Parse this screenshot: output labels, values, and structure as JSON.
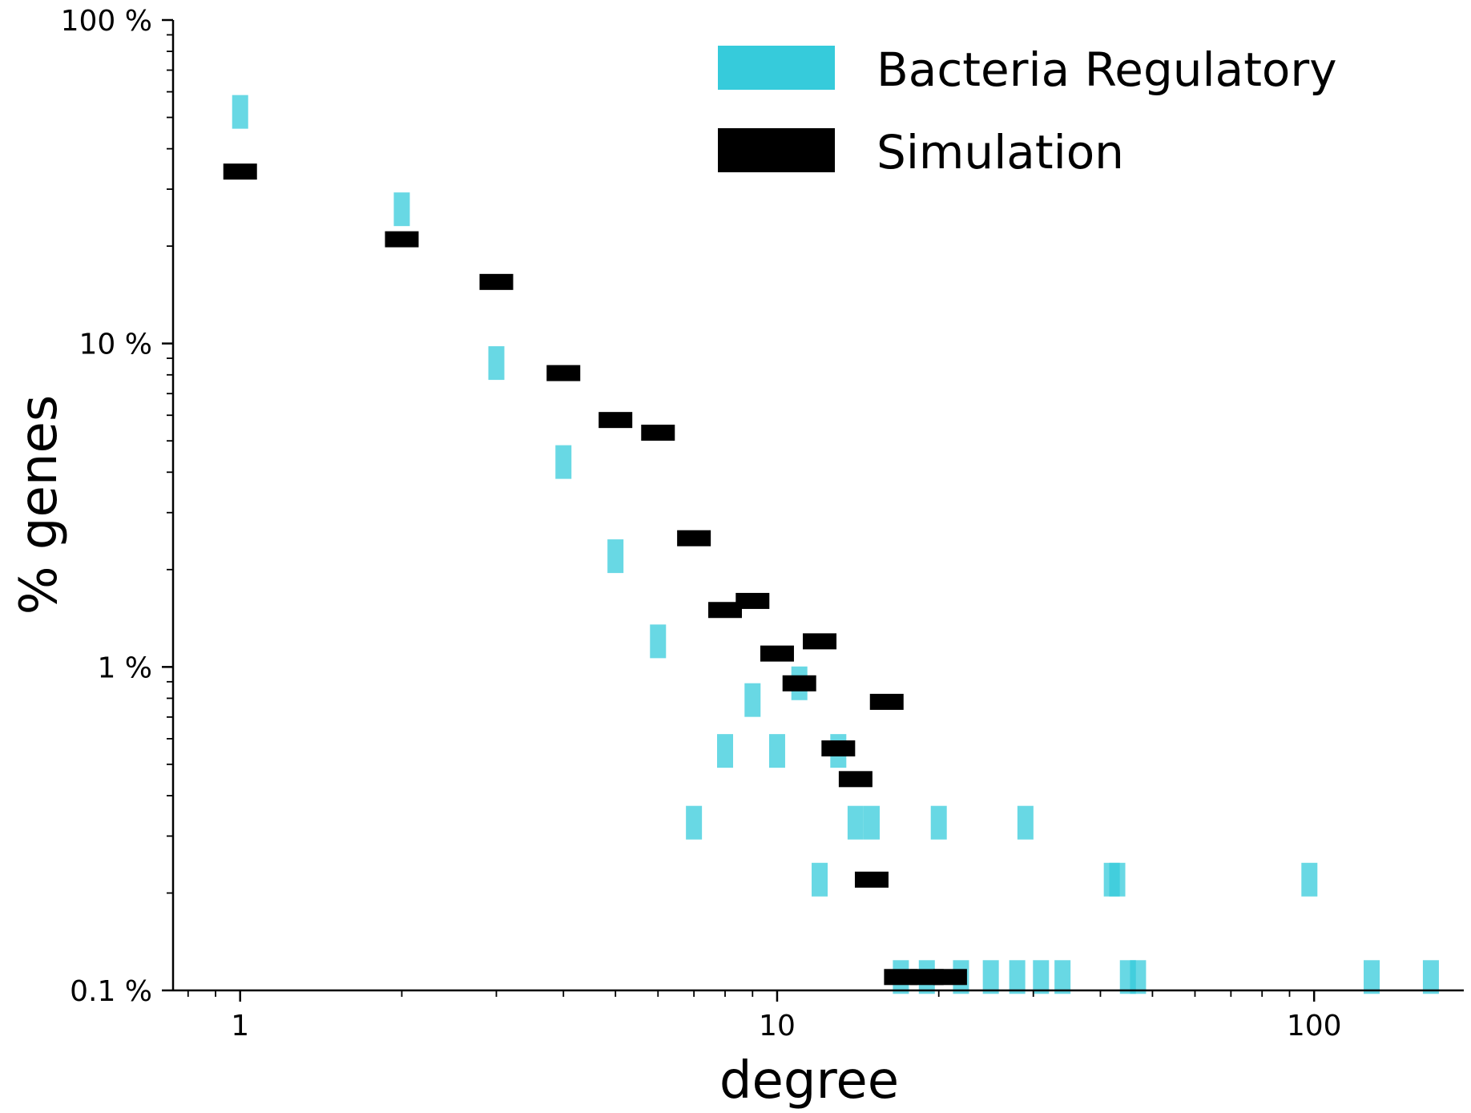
{
  "chart_data": {
    "type": "scatter",
    "title": "",
    "xlabel": "degree",
    "ylabel": "% genes",
    "xscale": "log",
    "yscale": "log",
    "xlim": [
      0.75,
      190
    ],
    "ylim": [
      0.1,
      100
    ],
    "x_ticks": [
      {
        "value": 1,
        "label": "1"
      },
      {
        "value": 10,
        "label": "10"
      },
      {
        "value": 100,
        "label": "100"
      }
    ],
    "y_ticks": [
      {
        "value": 0.1,
        "label": "0.1 %"
      },
      {
        "value": 1,
        "label": "1 %"
      },
      {
        "value": 10,
        "label": "10 %"
      },
      {
        "value": 100,
        "label": "100 %"
      }
    ],
    "grid": false,
    "legend_position": "top-right",
    "series": [
      {
        "name": "Bacteria Regulatory",
        "color": "#36cbdb",
        "marker": "vertical-bar",
        "points": [
          {
            "x": 1,
            "y": 52
          },
          {
            "x": 2,
            "y": 26
          },
          {
            "x": 3,
            "y": 8.7
          },
          {
            "x": 4,
            "y": 4.3
          },
          {
            "x": 5,
            "y": 2.2
          },
          {
            "x": 6,
            "y": 1.2
          },
          {
            "x": 7,
            "y": 0.33
          },
          {
            "x": 8,
            "y": 0.55
          },
          {
            "x": 9,
            "y": 0.79
          },
          {
            "x": 10,
            "y": 0.55
          },
          {
            "x": 11,
            "y": 0.89
          },
          {
            "x": 12,
            "y": 0.22
          },
          {
            "x": 13,
            "y": 0.55
          },
          {
            "x": 14,
            "y": 0.33
          },
          {
            "x": 15,
            "y": 0.33
          },
          {
            "x": 17,
            "y": 0.11
          },
          {
            "x": 19,
            "y": 0.11
          },
          {
            "x": 20,
            "y": 0.33
          },
          {
            "x": 22,
            "y": 0.11
          },
          {
            "x": 25,
            "y": 0.11
          },
          {
            "x": 28,
            "y": 0.11
          },
          {
            "x": 29,
            "y": 0.33
          },
          {
            "x": 31,
            "y": 0.11
          },
          {
            "x": 34,
            "y": 0.11
          },
          {
            "x": 42,
            "y": 0.22
          },
          {
            "x": 43,
            "y": 0.22
          },
          {
            "x": 45,
            "y": 0.11
          },
          {
            "x": 47,
            "y": 0.11
          },
          {
            "x": 98,
            "y": 0.22
          },
          {
            "x": 128,
            "y": 0.11
          },
          {
            "x": 165,
            "y": 0.11
          }
        ]
      },
      {
        "name": "Simulation",
        "color": "#000000",
        "marker": "horizontal-bar",
        "points": [
          {
            "x": 1,
            "y": 34
          },
          {
            "x": 2,
            "y": 21
          },
          {
            "x": 3,
            "y": 15.5
          },
          {
            "x": 4,
            "y": 8.1
          },
          {
            "x": 5,
            "y": 5.8
          },
          {
            "x": 6,
            "y": 5.3
          },
          {
            "x": 7,
            "y": 2.5
          },
          {
            "x": 8,
            "y": 1.5
          },
          {
            "x": 9,
            "y": 1.6
          },
          {
            "x": 10,
            "y": 1.1
          },
          {
            "x": 11,
            "y": 0.89
          },
          {
            "x": 12,
            "y": 1.2
          },
          {
            "x": 13,
            "y": 0.56
          },
          {
            "x": 14,
            "y": 0.45
          },
          {
            "x": 15,
            "y": 0.22
          },
          {
            "x": 16,
            "y": 0.78
          },
          {
            "x": 17,
            "y": 0.11
          },
          {
            "x": 19,
            "y": 0.11
          },
          {
            "x": 21,
            "y": 0.11
          }
        ]
      }
    ]
  }
}
